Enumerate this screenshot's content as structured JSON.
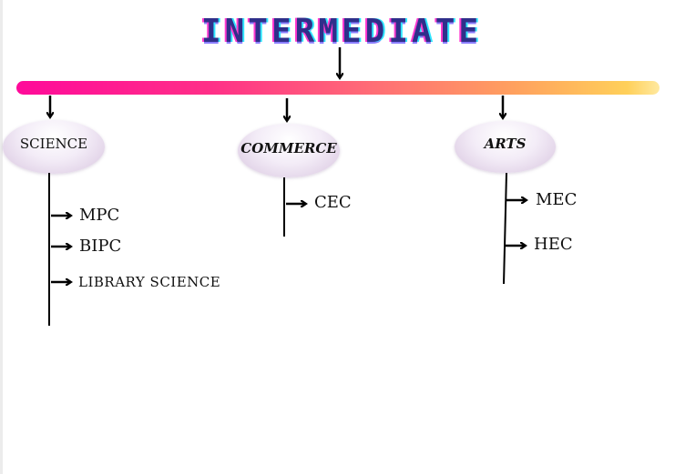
{
  "title": "INTERMEDIATE",
  "categories": [
    {
      "label": "SCIENCE",
      "items": [
        "MPC",
        "BIPC",
        "LIBRARY SCIENCE"
      ]
    },
    {
      "label": "COMMERCE",
      "items": [
        "CEC"
      ]
    },
    {
      "label": "ARTS",
      "items": [
        "MEC",
        "HEC"
      ]
    }
  ]
}
